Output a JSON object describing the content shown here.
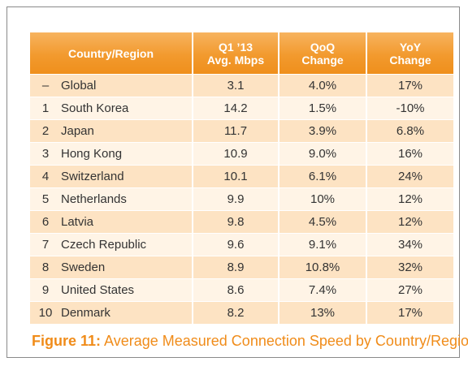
{
  "chart_data": {
    "type": "table",
    "columns": [
      "Country/Region",
      "Q1 ’13 Avg. Mbps",
      "QoQ Change",
      "YoY Change"
    ],
    "header_lines": [
      [
        "Country/Region"
      ],
      [
        "Q1 ’13",
        "Avg. Mbps"
      ],
      [
        "QoQ",
        "Change"
      ],
      [
        "YoY",
        "Change"
      ]
    ],
    "rows": [
      {
        "rank": "–",
        "country": "Global",
        "avg": "3.1",
        "qoq": "4.0%",
        "yoy": "17%"
      },
      {
        "rank": "1",
        "country": "South Korea",
        "avg": "14.2",
        "qoq": "1.5%",
        "yoy": "-10%"
      },
      {
        "rank": "2",
        "country": "Japan",
        "avg": "11.7",
        "qoq": "3.9%",
        "yoy": "6.8%"
      },
      {
        "rank": "3",
        "country": "Hong Kong",
        "avg": "10.9",
        "qoq": "9.0%",
        "yoy": "16%"
      },
      {
        "rank": "4",
        "country": "Switzerland",
        "avg": "10.1",
        "qoq": "6.1%",
        "yoy": "24%"
      },
      {
        "rank": "5",
        "country": "Netherlands",
        "avg": "9.9",
        "qoq": "10%",
        "yoy": "12%"
      },
      {
        "rank": "6",
        "country": "Latvia",
        "avg": "9.8",
        "qoq": "4.5%",
        "yoy": "12%"
      },
      {
        "rank": "7",
        "country": "Czech Republic",
        "avg": "9.6",
        "qoq": "9.1%",
        "yoy": "34%"
      },
      {
        "rank": "8",
        "country": "Sweden",
        "avg": "8.9",
        "qoq": "10.8%",
        "yoy": "32%"
      },
      {
        "rank": "9",
        "country": "United States",
        "avg": "8.6",
        "qoq": "7.4%",
        "yoy": "27%"
      },
      {
        "rank": "10",
        "country": "Denmark",
        "avg": "8.2",
        "qoq": "13%",
        "yoy": "17%"
      }
    ]
  },
  "caption": {
    "label": "Figure 11:",
    "text": "Average Measured Connection Speed by Country/Region"
  },
  "colors": {
    "header": "#f29a2e",
    "row_dark": "#fde3c3",
    "row_light": "#fff4e6",
    "caption": "#f08c1a"
  }
}
